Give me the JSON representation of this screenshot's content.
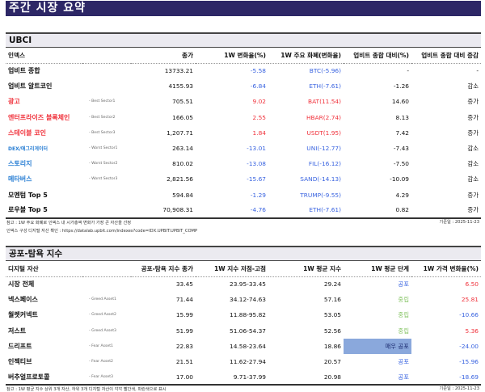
{
  "page_title": "주간 시장 요약",
  "colors": {
    "title_bar": "#2d2766",
    "section_head_bg": "#ebeaf0",
    "positive": "#f0323c",
    "negative": "#3a64e0",
    "neutral_stage": "#86c465",
    "extreme_fear_bg": "#8aa8dc"
  },
  "ubci": {
    "section_title": "UBCI",
    "headers": [
      "인덱스",
      "",
      "종가",
      "1W 변화율(%)",
      "1W 주요 화폐(변화율)",
      "업비트 종합 대비(%)",
      "업비트 종합 대비 증감"
    ],
    "rows": [
      {
        "name": "업비트 종합",
        "tag": "",
        "close": "13733.21",
        "change": "-5.58",
        "top_coin": "BTC(-5.96)",
        "vs_comp": "-",
        "vs_dir": "-",
        "name_color": "default",
        "val_color": "blue"
      },
      {
        "name": "업비트 알트코인",
        "tag": "",
        "close": "4155.93",
        "change": "-6.84",
        "top_coin": "ETH(-7.61)",
        "vs_comp": "-1.26",
        "vs_dir": "감소",
        "name_color": "default",
        "val_color": "blue"
      },
      {
        "name": "광고",
        "tag": "- Best Sector1",
        "close": "705.51",
        "change": "9.02",
        "top_coin": "BAT(11.54)",
        "vs_comp": "14.60",
        "vs_dir": "증가",
        "name_color": "red",
        "val_color": "red"
      },
      {
        "name": "엔터프라이즈 블록체인",
        "tag": "- Best Sector2",
        "close": "166.05",
        "change": "2.55",
        "top_coin": "HBAR(2.74)",
        "vs_comp": "8.13",
        "vs_dir": "증가",
        "name_color": "red",
        "val_color": "red"
      },
      {
        "name": "스테이블 코인",
        "tag": "- Best Sector3",
        "close": "1,207.71",
        "change": "1.84",
        "top_coin": "USDT(1.95)",
        "vs_comp": "7.42",
        "vs_dir": "증가",
        "name_color": "red",
        "val_color": "red"
      },
      {
        "name": "DEX/애그리게이터",
        "tag": "- Worst Sector1",
        "close": "263.14",
        "change": "-13.01",
        "top_coin": "UNI(-12.77)",
        "vs_comp": "-7.43",
        "vs_dir": "감소",
        "name_color": "blue",
        "val_color": "blue"
      },
      {
        "name": "스토리지",
        "tag": "- Worst Sector2",
        "close": "810.02",
        "change": "-13.08",
        "top_coin": "FIL(-16.12)",
        "vs_comp": "-7.50",
        "vs_dir": "감소",
        "name_color": "blue",
        "val_color": "blue"
      },
      {
        "name": "메타버스",
        "tag": "- Worst Sector3",
        "close": "2,821.56",
        "change": "-15.67",
        "top_coin": "SAND(-14.13)",
        "vs_comp": "-10.09",
        "vs_dir": "감소",
        "name_color": "blue",
        "val_color": "blue"
      },
      {
        "name": "모멘텀 Top 5",
        "tag": "",
        "close": "594.84",
        "change": "-1.29",
        "top_coin": "TRUMP(-9.55)",
        "vs_comp": "4.29",
        "vs_dir": "증가",
        "name_color": "default",
        "val_color": "blue"
      },
      {
        "name": "로우볼 Top 5",
        "tag": "",
        "close": "70,908.31",
        "change": "-4.76",
        "top_coin": "ETH(-7.61)",
        "vs_comp": "0.82",
        "vs_dir": "증가",
        "name_color": "default",
        "val_color": "blue"
      }
    ],
    "note1": "참고 : 1W 주요 화폐로 인덱스 내 시가총액 변화가 가장 큰 자산을 선정",
    "note2": "인덱스 구성 디지털 자산 확인 : https://datalab.upbit.com/indexes?code=IDX.UPBIT.UPBIT_COMP",
    "as_of": "기준일 : 2025-11-23"
  },
  "fear_greed": {
    "section_title": "공포-탐욕 지수",
    "headers": [
      "디지털 자산",
      "",
      "공포-탐욕 지수 종가",
      "1W 지수 저점-고점",
      "1W 평균 지수",
      "1W 평균 단계",
      "1W 가격 변화율(%)"
    ],
    "rows": [
      {
        "name": "시장 전체",
        "tag": "",
        "close": "33.45",
        "range": "23.95-33.45",
        "avg": "29.24",
        "stage": "공포",
        "stage_style": "blue",
        "price_change": "6.50",
        "pc_color": "red"
      },
      {
        "name": "넥스페이스",
        "tag": "- Greed Asset1",
        "close": "71.44",
        "range": "34.12-74.63",
        "avg": "57.16",
        "stage": "중립",
        "stage_style": "green",
        "price_change": "25.81",
        "pc_color": "red"
      },
      {
        "name": "월렛커넥트",
        "tag": "- Greed Asset2",
        "close": "15.99",
        "range": "11.88-95.82",
        "avg": "53.05",
        "stage": "중립",
        "stage_style": "green",
        "price_change": "-10.66",
        "pc_color": "blue"
      },
      {
        "name": "저스트",
        "tag": "- Greed Asset3",
        "close": "51.99",
        "range": "51.06-54.37",
        "avg": "52.56",
        "stage": "중립",
        "stage_style": "green",
        "price_change": "5.36",
        "pc_color": "red"
      },
      {
        "name": "드리프트",
        "tag": "- Fear Asset1",
        "close": "22.83",
        "range": "14.58-23.64",
        "avg": "18.86",
        "stage": "매우 공포",
        "stage_style": "hi-fear",
        "price_change": "-24.00",
        "pc_color": "blue"
      },
      {
        "name": "인젝티브",
        "tag": "- Fear Asset2",
        "close": "21.51",
        "range": "11.62-27.94",
        "avg": "20.57",
        "stage": "공포",
        "stage_style": "blue",
        "price_change": "-15.96",
        "pc_color": "blue"
      },
      {
        "name": "버추얼프로토콜",
        "tag": "- Fear Asset3",
        "close": "17.00",
        "range": "9.71-37.99",
        "avg": "20.98",
        "stage": "공포",
        "stage_style": "blue",
        "price_change": "-18.69",
        "pc_color": "blue"
      }
    ],
    "note1": "참고 : 1W 평균 지수 상위 3개 자산, 하위 3개 디지털 자산이 각각 빨간색, 파란색으로 표시",
    "as_of": "기준일 : 2025-11-23"
  }
}
